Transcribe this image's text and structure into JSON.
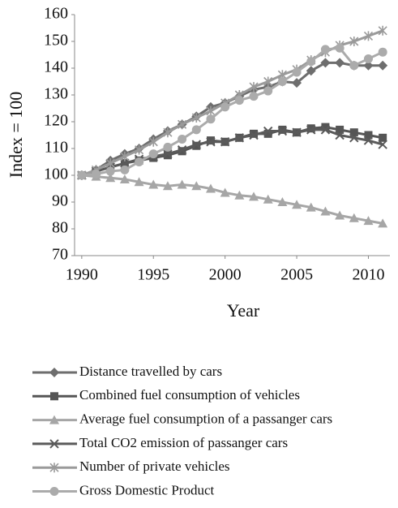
{
  "chart_data": {
    "type": "line",
    "x_label": "Year",
    "y_label": "Index = 100",
    "x": [
      1990,
      1991,
      1992,
      1993,
      1994,
      1995,
      1996,
      1997,
      1998,
      1999,
      2000,
      2001,
      2002,
      2003,
      2004,
      2005,
      2006,
      2007,
      2008,
      2009,
      2010,
      2011
    ],
    "xlim": [
      1989.5,
      2011.5
    ],
    "xticks": [
      1990,
      1995,
      2000,
      2005,
      2010
    ],
    "ylim": [
      70,
      160
    ],
    "yticks": [
      70,
      80,
      90,
      100,
      110,
      120,
      130,
      140,
      150,
      160
    ],
    "grid": false,
    "legend": "bottom",
    "series": [
      {
        "name": "Distance travelled by cars",
        "color": "#6e6e6e",
        "marker": "diamond",
        "values": [
          100,
          102,
          105.5,
          108,
          110,
          113.5,
          116.5,
          119,
          122,
          125.5,
          127,
          129.5,
          132,
          133,
          135,
          134.5,
          139,
          142,
          142,
          141,
          141,
          141
        ]
      },
      {
        "name": "Combined fuel consumption of vehicles",
        "color": "#555555",
        "marker": "square",
        "values": [
          100,
          101.5,
          103,
          104.5,
          105.5,
          106.5,
          107.5,
          109,
          111,
          113,
          112.5,
          114,
          115.5,
          115.5,
          117,
          116,
          117.5,
          118,
          117,
          116,
          115,
          114
        ]
      },
      {
        "name": "Average fuel consumption of a passanger cars",
        "color": "#a6a6a6",
        "marker": "triangle",
        "values": [
          100,
          99.5,
          99,
          98.5,
          97.5,
          96.5,
          96,
          96.5,
          96,
          95,
          93.5,
          92.5,
          92,
          91,
          90,
          89,
          88,
          86.5,
          85,
          84,
          83,
          82
        ]
      },
      {
        "name": "Total CO2 emission of passanger cars",
        "color": "#5a5a5a",
        "marker": "x",
        "values": [
          100,
          101.5,
          103,
          104.5,
          106,
          107,
          108,
          109.5,
          111.5,
          112.5,
          112.5,
          114,
          115,
          116.5,
          116.5,
          116,
          117,
          117,
          115,
          114,
          113,
          111.5
        ]
      },
      {
        "name": "Number of private vehicles",
        "color": "#9a9a9a",
        "marker": "star",
        "values": [
          100,
          102,
          104.5,
          107,
          109.5,
          112.5,
          116,
          119,
          121.5,
          124,
          127,
          130,
          133,
          135,
          137.5,
          139.5,
          143,
          146,
          148.5,
          150,
          152,
          154
        ]
      },
      {
        "name": "Gross Domestic Product",
        "color": "#ababab",
        "marker": "circle",
        "values": [
          100,
          100.5,
          101.5,
          102,
          105,
          108,
          110.5,
          113.5,
          117,
          121,
          125.5,
          128,
          129.5,
          131.5,
          135,
          138.5,
          142.5,
          147,
          147.5,
          141,
          143.5,
          146
        ]
      }
    ]
  }
}
